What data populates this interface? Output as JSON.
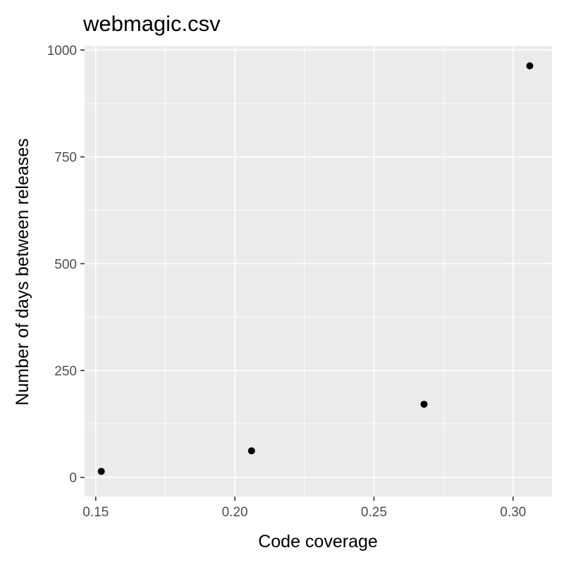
{
  "chart_data": {
    "type": "scatter",
    "title": "webmagic.csv",
    "xlabel": "Code coverage",
    "ylabel": "Number of days between releases",
    "xlim": [
      0.146,
      0.314
    ],
    "ylim": [
      -45,
      1010
    ],
    "x_ticks": [
      0.15,
      0.2,
      0.25,
      0.3
    ],
    "x_tick_labels": [
      "0.15",
      "0.20",
      "0.25",
      "0.30"
    ],
    "y_ticks": [
      0,
      250,
      500,
      750,
      1000
    ],
    "y_tick_labels": [
      "0",
      "250",
      "500",
      "750",
      "1000"
    ],
    "grid": true,
    "panel_background": "#ebebeb",
    "grid_color": "#ffffff",
    "point_color": "#000000",
    "series": [
      {
        "x": [
          0.152,
          0.206,
          0.268,
          0.306
        ],
        "y": [
          14,
          62,
          171,
          963
        ]
      }
    ]
  }
}
